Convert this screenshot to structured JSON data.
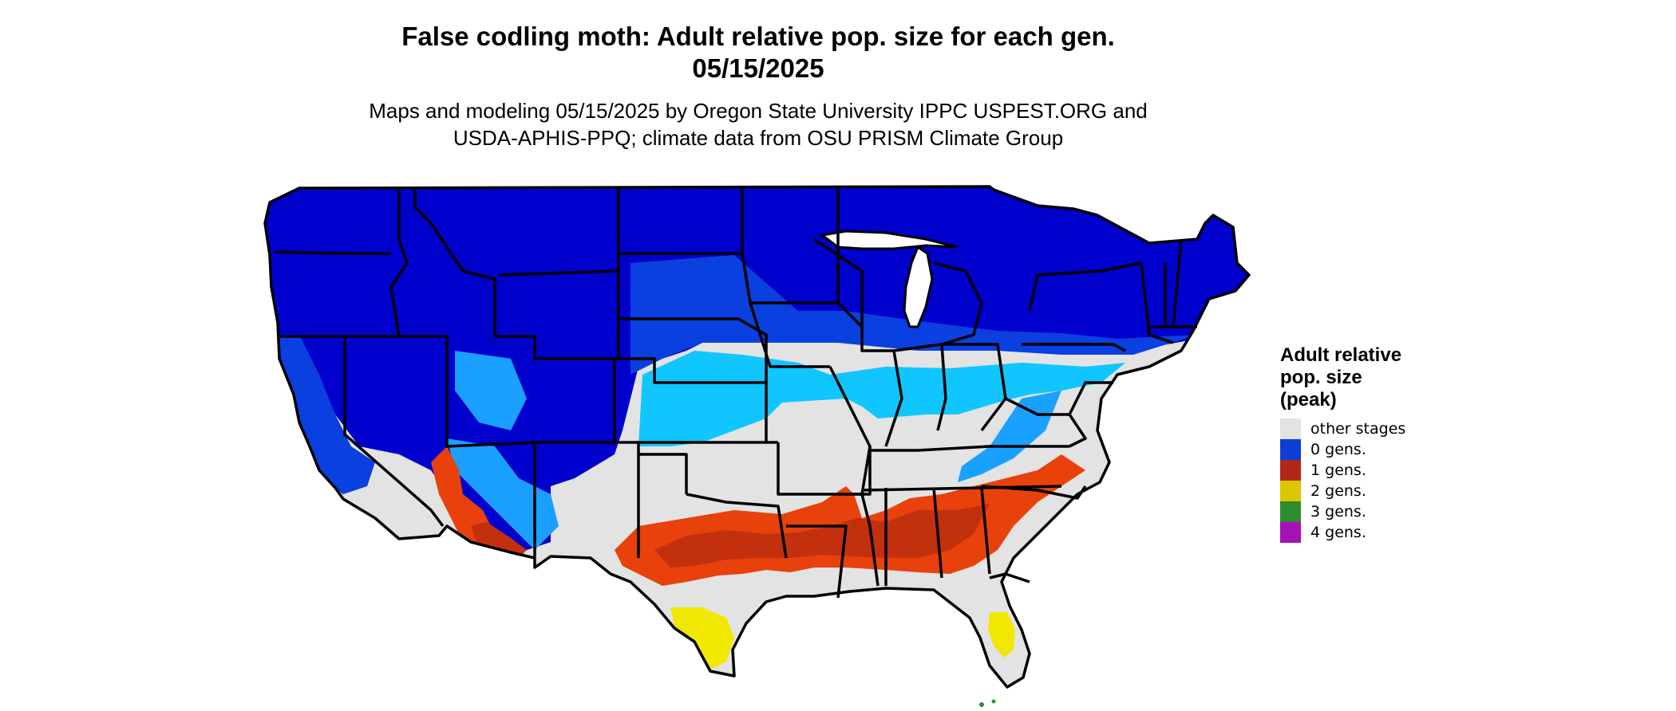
{
  "title": {
    "line1": "False codling moth: Adult relative pop. size for each gen.",
    "line2": "05/15/2025"
  },
  "subtitle": {
    "line1": "Maps and modeling 05/15/2025 by Oregon State University IPPC USPEST.ORG and",
    "line2": "USDA-APHIS-PPQ; climate data from OSU PRISM Climate Group"
  },
  "legend": {
    "title_lines": [
      "Adult relative",
      "pop. size",
      "(peak)"
    ],
    "items": [
      {
        "label": "other stages",
        "color": "#e3e3e3"
      },
      {
        "label": "0 gens.",
        "color": "#0d3fd6"
      },
      {
        "label": "1 gens.",
        "color": "#b3271b"
      },
      {
        "label": "2 gens.",
        "color": "#dbc600"
      },
      {
        "label": "3 gens.",
        "color": "#2e8b2e"
      },
      {
        "label": "4 gens.",
        "color": "#a412b4"
      }
    ]
  },
  "map_colors": {
    "north_blue": "#0000cc",
    "mid_blue": "#0a3fe0",
    "light_blue": "#1aa0ff",
    "cyan": "#11c6ff",
    "gray": "#e3e3e3",
    "orange_red": "#e8410c",
    "dark_red": "#c2300e",
    "yellow": "#f0e800",
    "green": "#2e8b2e",
    "border": "#000000"
  }
}
